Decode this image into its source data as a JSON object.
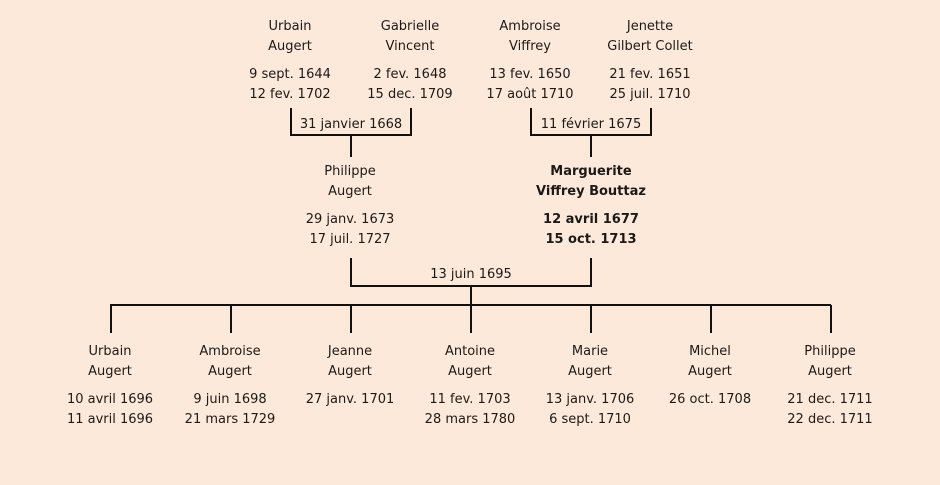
{
  "grandparents": [
    {
      "first": "Urbain",
      "last": "Augert",
      "birth": "9 sept. 1644",
      "death": "12 fev. 1702"
    },
    {
      "first": "Gabrielle",
      "last": "Vincent",
      "birth": "2 fev. 1648",
      "death": "15 dec. 1709"
    },
    {
      "first": "Ambroise",
      "last": "Viffrey",
      "birth": "13 fev. 1650",
      "death": "17 août 1710"
    },
    {
      "first": "Jenette",
      "last": "Gilbert Collet",
      "birth": "21 fev. 1651",
      "death": "25 juil. 1710"
    }
  ],
  "marriages": {
    "paternal": "31 janvier 1668",
    "maternal": "11 février 1675",
    "parents": "13 juin 1695"
  },
  "parents": [
    {
      "first": "Philippe",
      "last": "Augert",
      "birth": "29 janv. 1673",
      "death": "17 juil. 1727"
    },
    {
      "first": "Marguerite",
      "last": "Viffrey Bouttaz",
      "birth": "12 avril 1677",
      "death": "15 oct. 1713"
    }
  ],
  "children": [
    {
      "first": "Urbain",
      "last": "Augert",
      "birth": "10 avril 1696",
      "death": "11 avril 1696"
    },
    {
      "first": "Ambroise",
      "last": "Augert",
      "birth": "9 juin 1698",
      "death": "21 mars 1729"
    },
    {
      "first": "Jeanne",
      "last": "Augert",
      "birth": "27 janv. 1701",
      "death": ""
    },
    {
      "first": "Antoine",
      "last": "Augert",
      "birth": "11 fev. 1703",
      "death": "28 mars 1780"
    },
    {
      "first": "Marie",
      "last": "Augert",
      "birth": "13 janv. 1706",
      "death": "6 sept. 1710"
    },
    {
      "first": "Michel",
      "last": "Augert",
      "birth": "26 oct. 1708",
      "death": ""
    },
    {
      "first": "Philippe",
      "last": "Augert",
      "birth": "21 dec. 1711",
      "death": "22 dec. 1711"
    }
  ]
}
